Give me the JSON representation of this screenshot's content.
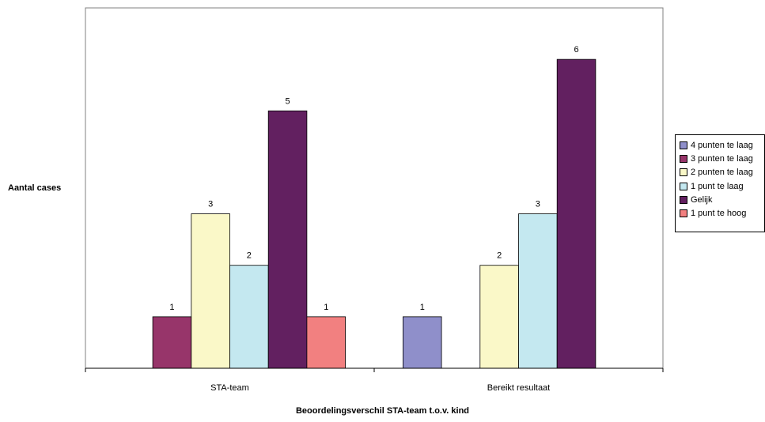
{
  "chart_data": {
    "type": "bar",
    "categories": [
      "STA-team",
      "Bereikt resultaat"
    ],
    "series": [
      {
        "name": "4 punten te laag",
        "color": "#8f8fca",
        "values": [
          0,
          1
        ]
      },
      {
        "name": "3 punten te laag",
        "color": "#97356a",
        "values": [
          1,
          0
        ]
      },
      {
        "name": "2 punten te laag",
        "color": "#faf8c8",
        "values": [
          3,
          2
        ]
      },
      {
        "name": "1 punt te laag",
        "color": "#c4e8f0",
        "values": [
          2,
          3
        ]
      },
      {
        "name": "Gelijk",
        "color": "#622060",
        "values": [
          5,
          6
        ]
      },
      {
        "name": "1 punt te hoog",
        "color": "#f28080",
        "values": [
          1,
          0
        ]
      }
    ],
    "ylabel": "Aantal cases",
    "xlabel": "Beoordelingsverschil STA-team t.o.v. kind",
    "ylim": [
      0,
      7
    ],
    "grid": false,
    "legend": "right"
  }
}
